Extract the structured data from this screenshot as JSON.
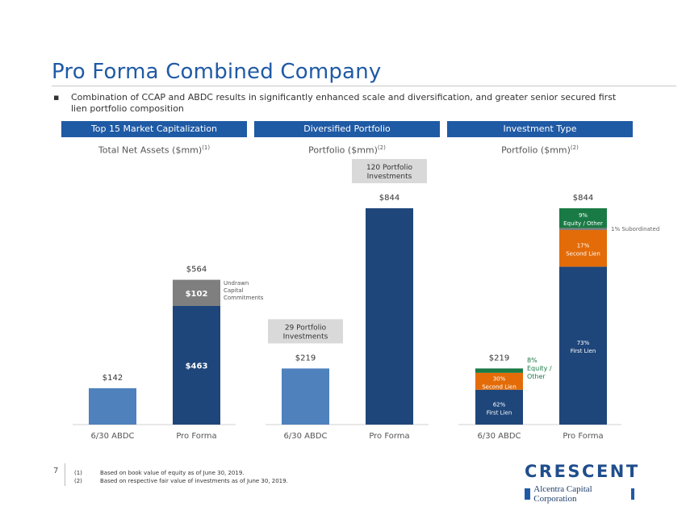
{
  "page": {
    "title": "Pro Forma Combined Company",
    "bullet": "Combination of CCAP and ABDC results in significantly enhanced scale and diversification, and greater senior secured first lien portfolio composition",
    "bullet_marker": "▪",
    "page_number": "7"
  },
  "headers": [
    {
      "label": "Top 15 Market Capitalization",
      "sub": "Total Net Assets ($mm)",
      "sup": "(1)"
    },
    {
      "label": "Diversified Portfolio",
      "sub": "Portfolio ($mm)",
      "sup": "(2)"
    },
    {
      "label": "Investment Type",
      "sub": "Portfolio ($mm)",
      "sup": "(2)"
    }
  ],
  "footnotes": [
    {
      "num": "(1)",
      "text": "Based on book value of equity as of June 30, 2019."
    },
    {
      "num": "(2)",
      "text": "Based on respective fair value of investments as of June 30, 2019."
    }
  ],
  "logo": {
    "name": "CRESCENT",
    "sub": "Alcentra Capital Corporation"
  },
  "colors": {
    "blue": "#1f5aa5",
    "navy": "#1f467a",
    "light_blue": "#4f81bd",
    "gray": "#7f7f7f",
    "orange": "#e36c09",
    "green": "#1a7a45"
  },
  "chart_data": [
    {
      "type": "bar",
      "stacked": true,
      "title": "Total Net Assets ($mm)",
      "categories": [
        "6/30 ABDC",
        "Pro Forma"
      ],
      "ylim": [
        0,
        900
      ],
      "totals": [
        "$142",
        "$564"
      ],
      "series": [
        {
          "name": "Net Assets",
          "values": [
            142,
            463
          ],
          "labels": [
            "",
            "$463"
          ]
        },
        {
          "name": "Undrawn Capital Commitments",
          "values": [
            0,
            102
          ],
          "labels": [
            "",
            "$102"
          ]
        }
      ],
      "annotations": [
        {
          "text": "Undrawn Capital Commitments",
          "target": "Pro Forma"
        }
      ]
    },
    {
      "type": "bar",
      "title": "Portfolio ($mm)",
      "categories": [
        "6/30 ABDC",
        "Pro Forma"
      ],
      "ylim": [
        0,
        900
      ],
      "values": [
        219,
        844
      ],
      "totals": [
        "$219",
        "$844"
      ],
      "callouts": [
        "29 Portfolio Investments",
        "120 Portfolio Investments"
      ]
    },
    {
      "type": "bar",
      "stacked": true,
      "title": "Portfolio ($mm)",
      "categories": [
        "6/30 ABDC",
        "Pro Forma"
      ],
      "ylim": [
        0,
        900
      ],
      "totals": [
        "$219",
        "$844"
      ],
      "series": [
        {
          "name": "First Lien",
          "values": [
            136,
            616
          ],
          "labels": [
            "62%\nFirst Lien",
            "73%\nFirst Lien"
          ]
        },
        {
          "name": "Second Lien",
          "values": [
            66,
            143
          ],
          "labels": [
            "30%\nSecond Lien",
            "17%\nSecond Lien"
          ]
        },
        {
          "name": "Subordinated",
          "values": [
            0,
            8
          ],
          "labels": [
            "",
            ""
          ]
        },
        {
          "name": "Equity / Other",
          "values": [
            17,
            77
          ],
          "labels": [
            "",
            "9%\nEquity / Other"
          ]
        }
      ],
      "annotations": [
        {
          "text": "8%\nEquity /\nOther",
          "target": "6/30 ABDC"
        },
        {
          "text": "1% Subordinated",
          "target": "Pro Forma"
        }
      ]
    }
  ]
}
